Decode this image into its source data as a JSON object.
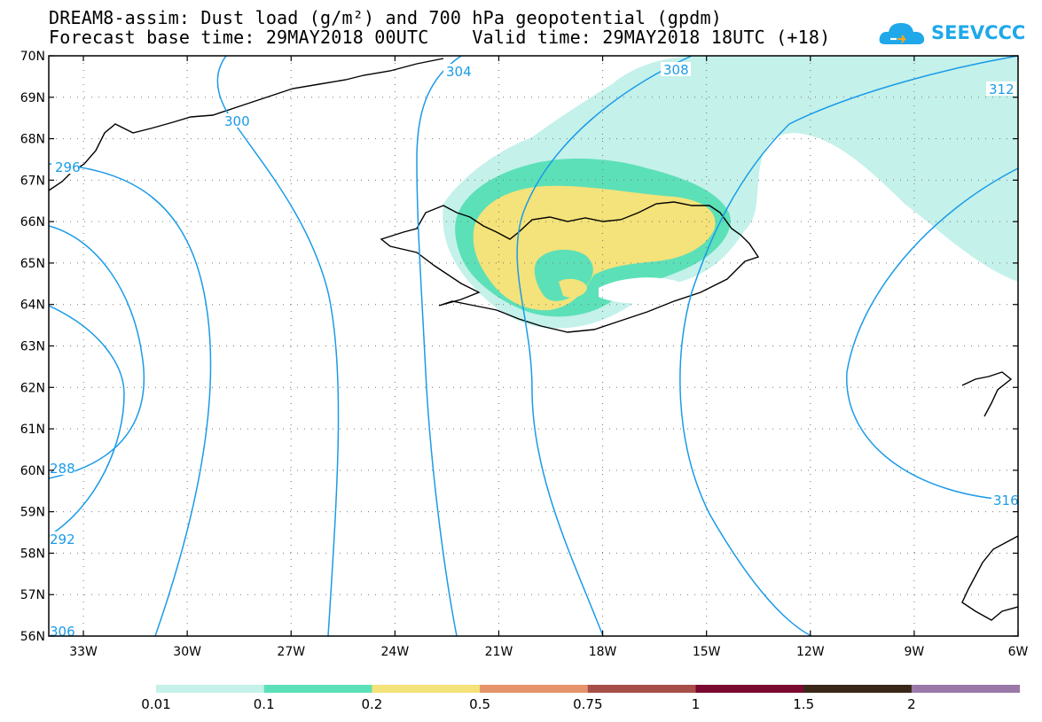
{
  "title": {
    "line1": "DREAM8-assim: Dust load (g/m²) and 700 hPa geopotential (gpdm)",
    "line2": "Forecast base time: 29MAY2018 00UTC    Valid time: 29MAY2018 18UTC (+18)"
  },
  "logo": {
    "text": "SEEVCCC",
    "icon": "cloud-icon",
    "color": "#1fa8ea"
  },
  "map": {
    "lat_labels": [
      "70N",
      "69N",
      "68N",
      "67N",
      "66N",
      "65N",
      "64N",
      "63N",
      "62N",
      "61N",
      "60N",
      "59N",
      "58N",
      "57N",
      "56N"
    ],
    "lon_labels": [
      "33W",
      "30W",
      "27W",
      "24W",
      "21W",
      "18W",
      "15W",
      "12W",
      "9W",
      "6W"
    ],
    "lat_range": [
      56,
      70
    ],
    "lon_range": [
      -34.0,
      -6.0
    ],
    "grid": "dotted"
  },
  "contours": {
    "color": "#1a9be8",
    "labels": [
      "296",
      "300",
      "304",
      "308",
      "312",
      "288",
      "292",
      "306",
      "316"
    ]
  },
  "colorbar": {
    "labels": [
      "0.01",
      "0.1",
      "0.2",
      "0.5",
      "0.75",
      "1",
      "1.5",
      "2"
    ],
    "colors": [
      "#c4f1ea",
      "#5ce0b8",
      "#f4e27a",
      "#e4936b",
      "#a84e48",
      "#7a0a30",
      "#3a2718",
      "#9a78a8"
    ]
  }
}
